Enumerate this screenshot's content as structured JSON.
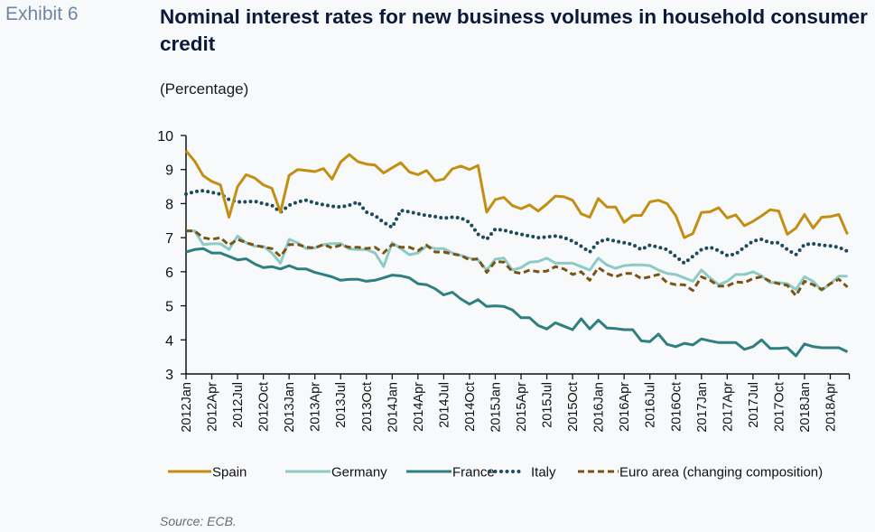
{
  "header": {
    "exhibit_label": "Exhibit 6",
    "title": "Nominal interest rates for new business volumes in household consumer credit",
    "subtitle": "(Percentage)"
  },
  "footer": {
    "source": "Source: ECB."
  },
  "chart_data": {
    "type": "line",
    "title": "Nominal interest rates for new business volumes in household consumer credit",
    "subtitle": "(Percentage)",
    "xlabel": "",
    "ylabel": "",
    "ylim": [
      3,
      10
    ],
    "yticks": [
      3,
      4,
      5,
      6,
      7,
      8,
      9,
      10
    ],
    "x_start": "2012Jan",
    "x_frequency": "monthly",
    "x_count": 78,
    "x_tick_labels": [
      "2012Jan",
      "2012Apr",
      "2012Jul",
      "2012Oct",
      "2013Jan",
      "2013Apr",
      "2013Jul",
      "2013Oct",
      "2014Jan",
      "2014Apr",
      "2014Jul",
      "2014Oct",
      "2015Jan",
      "2015Apr",
      "2015Jul",
      "2015Oct",
      "2016Jan",
      "2016Apr",
      "2016Jul",
      "2016Oct",
      "2017Jan",
      "2017Apr",
      "2017Jul",
      "2017Oct",
      "2018Jan",
      "2018Apr"
    ],
    "x_tick_every": 3,
    "grid": false,
    "legend_position": "bottom",
    "series": [
      {
        "name": "Spain",
        "color": "#c38f12",
        "style": "solid",
        "values": [
          9.55,
          9.25,
          8.82,
          8.65,
          8.55,
          7.6,
          8.5,
          8.85,
          8.75,
          8.55,
          8.45,
          7.75,
          8.83,
          9.0,
          8.97,
          8.94,
          9.03,
          8.72,
          9.22,
          9.44,
          9.23,
          9.16,
          9.13,
          8.9,
          9.05,
          9.2,
          8.93,
          8.85,
          8.97,
          8.67,
          8.72,
          9.02,
          9.1,
          9.0,
          9.12,
          7.75,
          8.12,
          8.18,
          7.94,
          7.85,
          7.96,
          7.78,
          7.99,
          8.22,
          8.2,
          8.1,
          7.7,
          7.6,
          8.15,
          7.9,
          7.9,
          7.45,
          7.65,
          7.65,
          8.05,
          8.1,
          8.0,
          7.65,
          7.0,
          7.12,
          7.74,
          7.76,
          7.88,
          7.58,
          7.67,
          7.35,
          7.48,
          7.64,
          7.82,
          7.78,
          7.1,
          7.28,
          7.68,
          7.28,
          7.6,
          7.62,
          7.68,
          7.1
        ]
      },
      {
        "name": "Germany",
        "color": "#8ecbc7",
        "style": "solid",
        "values": [
          7.2,
          7.2,
          6.8,
          6.82,
          6.82,
          6.65,
          7.05,
          6.85,
          6.75,
          6.75,
          6.55,
          6.25,
          6.95,
          6.85,
          6.68,
          6.7,
          6.8,
          6.83,
          6.83,
          6.67,
          6.65,
          6.65,
          6.55,
          6.15,
          6.85,
          6.68,
          6.5,
          6.55,
          6.75,
          6.68,
          6.68,
          6.55,
          6.48,
          6.4,
          6.35,
          6.05,
          6.37,
          6.4,
          6.05,
          6.12,
          6.28,
          6.3,
          6.4,
          6.25,
          6.25,
          6.25,
          6.15,
          6.05,
          6.4,
          6.2,
          6.1,
          6.18,
          6.2,
          6.2,
          6.18,
          6.05,
          5.95,
          5.92,
          5.82,
          5.72,
          6.05,
          5.82,
          5.62,
          5.72,
          5.92,
          5.92,
          6.0,
          5.88,
          5.68,
          5.68,
          5.65,
          5.48,
          5.85,
          5.72,
          5.45,
          5.65,
          5.87,
          5.87
        ]
      },
      {
        "name": "France",
        "color": "#2e7f80",
        "style": "solid",
        "values": [
          6.58,
          6.65,
          6.68,
          6.55,
          6.55,
          6.45,
          6.35,
          6.38,
          6.23,
          6.12,
          6.15,
          6.08,
          6.18,
          6.08,
          6.08,
          5.98,
          5.92,
          5.85,
          5.75,
          5.78,
          5.78,
          5.72,
          5.75,
          5.82,
          5.9,
          5.88,
          5.82,
          5.65,
          5.62,
          5.5,
          5.32,
          5.4,
          5.2,
          5.05,
          5.18,
          4.98,
          5.0,
          4.98,
          4.88,
          4.65,
          4.65,
          4.42,
          4.32,
          4.5,
          4.4,
          4.3,
          4.62,
          4.32,
          4.58,
          4.35,
          4.33,
          4.3,
          4.3,
          3.97,
          3.95,
          4.17,
          3.87,
          3.8,
          3.9,
          3.85,
          4.03,
          3.97,
          3.92,
          3.92,
          3.92,
          3.72,
          3.8,
          4.0,
          3.75,
          3.75,
          3.77,
          3.53,
          3.88,
          3.8,
          3.77,
          3.77,
          3.77,
          3.65
        ]
      },
      {
        "name": "Italy",
        "color": "#1e4a5a",
        "style": "dotted",
        "values": [
          8.28,
          8.35,
          8.38,
          8.33,
          8.28,
          8.12,
          8.05,
          8.05,
          8.07,
          8.0,
          7.95,
          7.75,
          7.95,
          8.05,
          8.1,
          8.02,
          7.97,
          7.92,
          7.9,
          7.95,
          8.05,
          7.75,
          7.65,
          7.45,
          7.3,
          7.8,
          7.76,
          7.7,
          7.65,
          7.62,
          7.57,
          7.6,
          7.58,
          7.45,
          7.1,
          6.95,
          7.25,
          7.22,
          7.15,
          7.1,
          7.05,
          7.0,
          7.02,
          7.05,
          7.0,
          6.9,
          6.75,
          6.58,
          6.88,
          6.95,
          6.9,
          6.85,
          6.8,
          6.65,
          6.78,
          6.72,
          6.65,
          6.45,
          6.25,
          6.45,
          6.65,
          6.72,
          6.62,
          6.48,
          6.52,
          6.72,
          6.9,
          6.95,
          6.85,
          6.85,
          6.65,
          6.5,
          6.8,
          6.82,
          6.78,
          6.76,
          6.72,
          6.6
        ]
      },
      {
        "name": "Euro area (changing composition)",
        "color": "#7a5412",
        "style": "dashed",
        "values": [
          7.2,
          7.2,
          7.0,
          6.95,
          7.0,
          6.78,
          6.95,
          6.85,
          6.78,
          6.72,
          6.68,
          6.45,
          6.8,
          6.8,
          6.72,
          6.7,
          6.8,
          6.7,
          6.78,
          6.72,
          6.72,
          6.68,
          6.72,
          6.55,
          6.8,
          6.72,
          6.72,
          6.62,
          6.78,
          6.58,
          6.58,
          6.52,
          6.48,
          6.35,
          6.38,
          5.98,
          6.3,
          6.28,
          6.0,
          5.95,
          6.05,
          6.0,
          6.02,
          6.15,
          6.08,
          5.92,
          6.0,
          5.75,
          6.12,
          5.95,
          5.85,
          5.95,
          5.95,
          5.8,
          5.85,
          5.92,
          5.68,
          5.62,
          5.62,
          5.45,
          5.85,
          5.75,
          5.58,
          5.58,
          5.7,
          5.68,
          5.8,
          5.85,
          5.72,
          5.65,
          5.6,
          5.3,
          5.72,
          5.62,
          5.48,
          5.65,
          5.78,
          5.55
        ]
      }
    ]
  }
}
